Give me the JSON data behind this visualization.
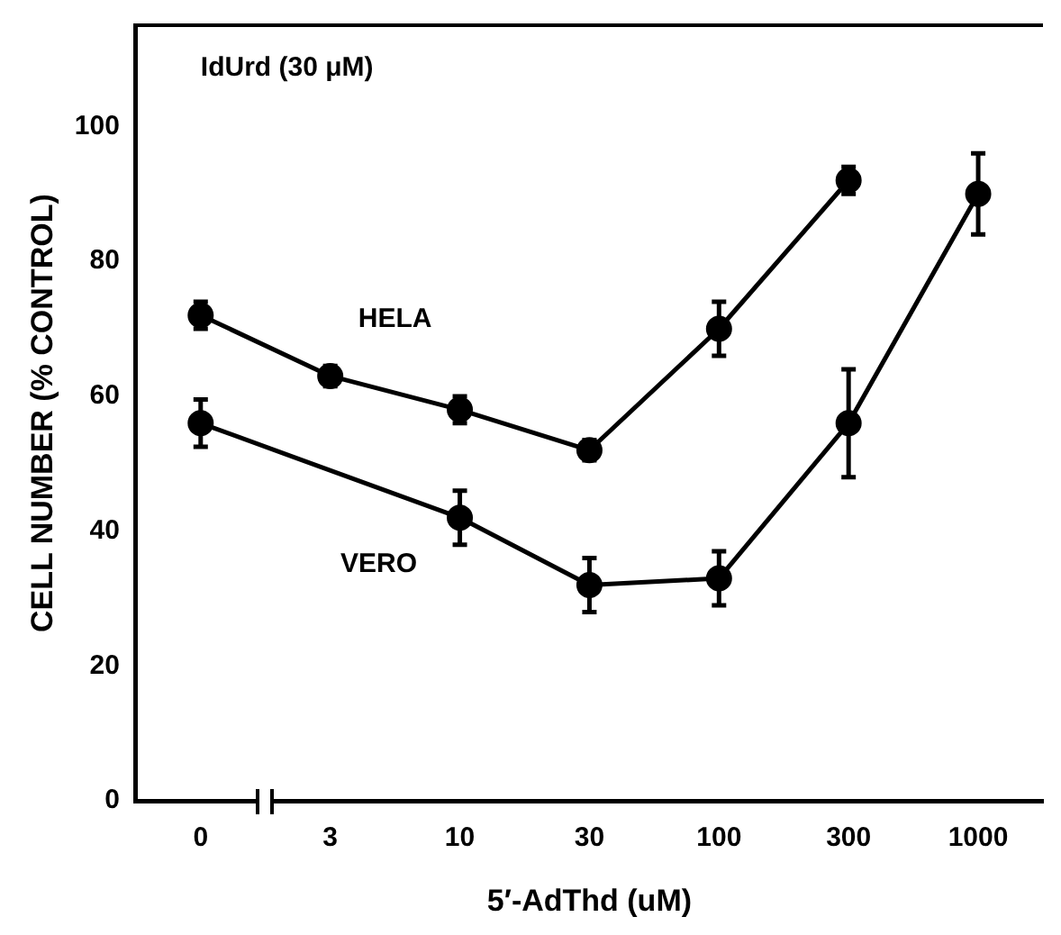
{
  "chart_data": {
    "type": "line",
    "xlabel": "5′-AdThd (uM)",
    "ylabel": "CELL NUMBER (% CONTROL)",
    "annotations": [
      "IdUrd (30 μM)"
    ],
    "categories": [
      "0",
      "3",
      "10",
      "30",
      "100",
      "300",
      "1000"
    ],
    "ylim": [
      0,
      115
    ],
    "yticks": [
      0,
      20,
      40,
      60,
      80,
      100
    ],
    "grid": false,
    "legend": false,
    "marker": "circle",
    "series": [
      {
        "name": "HELA",
        "color": "#000000",
        "values": [
          72,
          63,
          58,
          52,
          70,
          92,
          null
        ],
        "errors": [
          2,
          1.5,
          2,
          1.5,
          4,
          2,
          null
        ]
      },
      {
        "name": "VERO",
        "color": "#000000",
        "values": [
          56,
          null,
          42,
          32,
          33,
          56,
          90
        ],
        "errors": [
          3.5,
          null,
          4,
          4,
          4,
          8,
          6
        ]
      }
    ]
  }
}
